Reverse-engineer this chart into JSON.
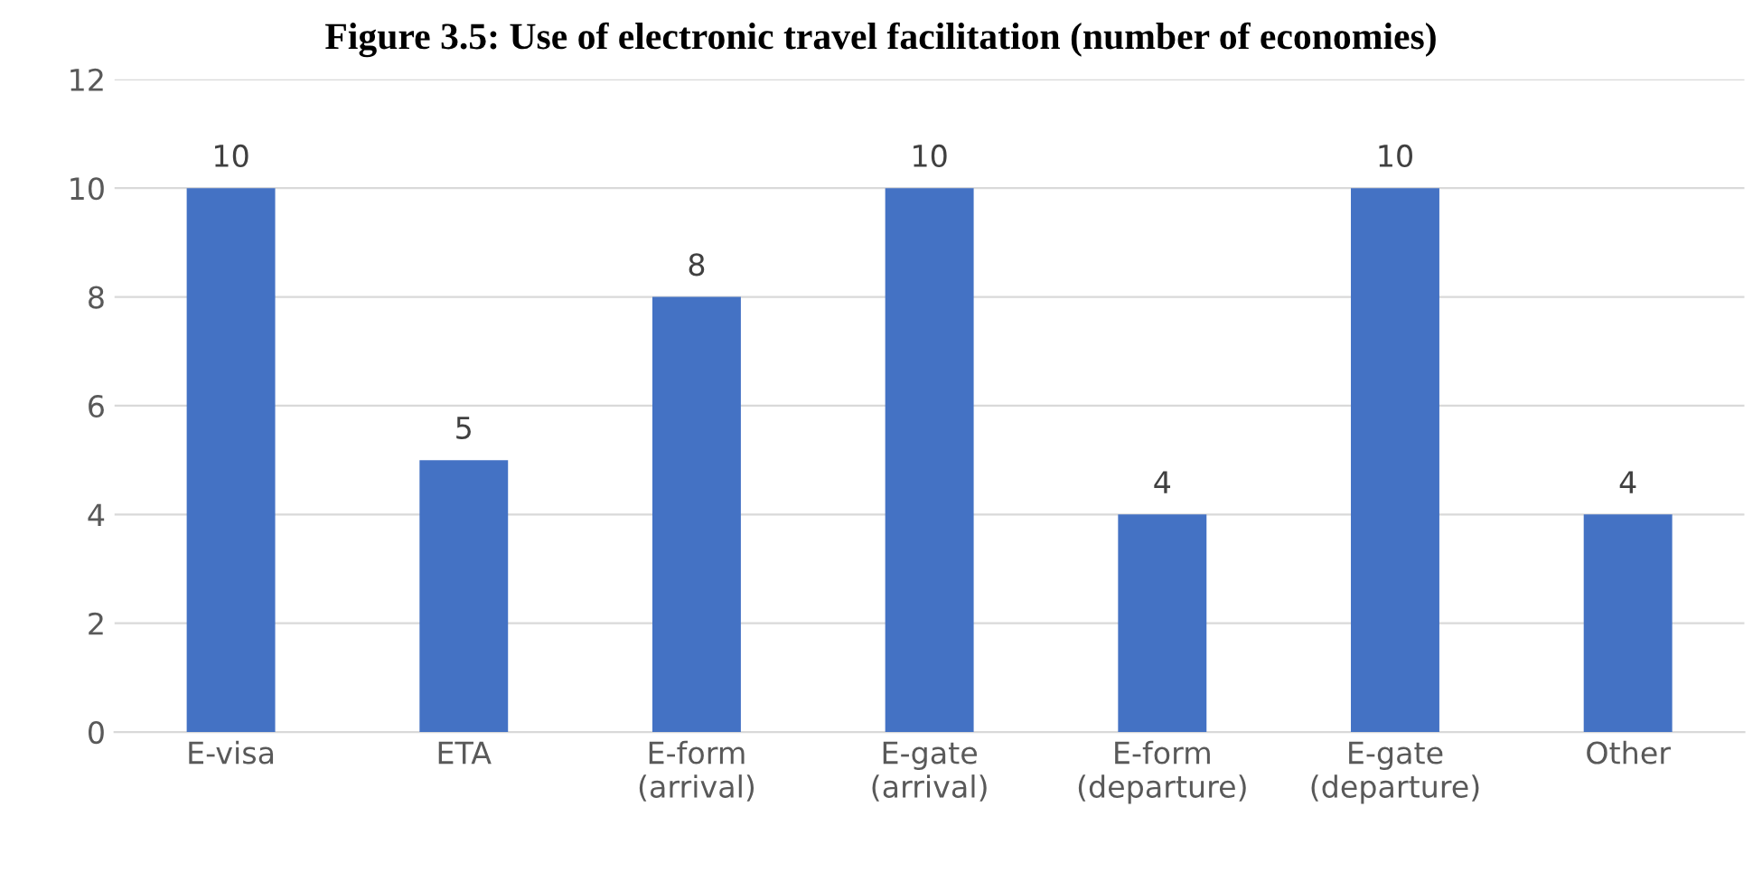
{
  "chart_data": {
    "type": "bar",
    "title": "Figure 3.5: Use of electronic travel facilitation (number of economies)",
    "categories": [
      "E-visa",
      "ETA",
      "E-form\n(arrival)",
      "E-gate\n(arrival)",
      "E-form\n(departure)",
      "E-gate\n(departure)",
      "Other"
    ],
    "values": [
      10,
      5,
      8,
      10,
      4,
      10,
      4
    ],
    "color": "#4472c4",
    "ylim": [
      0,
      12
    ],
    "yticks": [
      0,
      2,
      4,
      6,
      8,
      10,
      12
    ],
    "grid": "y",
    "data_labels": true
  }
}
